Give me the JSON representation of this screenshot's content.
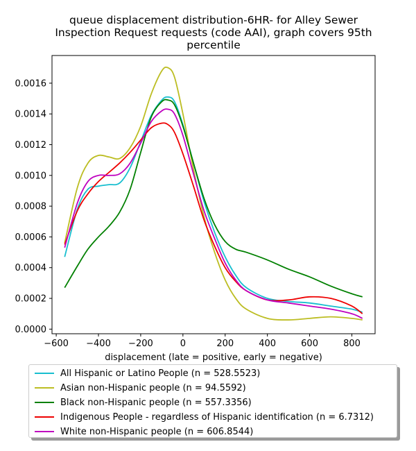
{
  "chart_data": {
    "type": "line",
    "title_lines": [
      "queue displacement distribution-6HR-  for Alley Sewer",
      "Inspection Request  requests (code AAI), graph covers 95th",
      "percentile"
    ],
    "xlabel": "displacement (late = positive, early = negative)",
    "ylabel": "",
    "xlim": [
      -620,
      910
    ],
    "ylim": [
      -3e-05,
      0.00178
    ],
    "x_ticks": [
      -600,
      -400,
      -200,
      0,
      200,
      400,
      600,
      800
    ],
    "x_tick_labels": [
      "−600",
      "−400",
      "−200",
      "0",
      "200",
      "400",
      "600",
      "800"
    ],
    "y_ticks": [
      0,
      0.0002,
      0.0004,
      0.0006,
      0.0008,
      0.001,
      0.0012,
      0.0014,
      0.0016
    ],
    "y_tick_labels": [
      "0.0000",
      "0.0002",
      "0.0004",
      "0.0006",
      "0.0008",
      "0.0010",
      "0.0012",
      "0.0014",
      "0.0016"
    ],
    "grid": false,
    "legend_position": "below",
    "series": [
      {
        "name": "All Hispanic or Latino People (n = 528.5523)",
        "color": "#17becf",
        "x": [
          -560,
          -500,
          -450,
          -400,
          -350,
          -300,
          -250,
          -200,
          -150,
          -100,
          -70,
          -40,
          0,
          50,
          100,
          150,
          200,
          250,
          300,
          400,
          500,
          600,
          700,
          800,
          850
        ],
        "y": [
          0.00047,
          0.00078,
          0.00091,
          0.00093,
          0.00094,
          0.00095,
          0.00105,
          0.00122,
          0.00139,
          0.00149,
          0.00151,
          0.00148,
          0.00133,
          0.00108,
          0.00083,
          0.00063,
          0.00047,
          0.00035,
          0.00027,
          0.0002,
          0.00018,
          0.00017,
          0.00015,
          0.00013,
          0.00011
        ]
      },
      {
        "name": "Asian non-Hispanic people (n = 94.5592)",
        "color": "#bcbd22",
        "x": [
          -560,
          -500,
          -450,
          -400,
          -350,
          -300,
          -250,
          -200,
          -150,
          -100,
          -70,
          -40,
          0,
          50,
          100,
          150,
          200,
          250,
          300,
          400,
          500,
          600,
          700,
          800,
          850
        ],
        "y": [
          0.00056,
          0.00092,
          0.00108,
          0.00113,
          0.00112,
          0.00111,
          0.00118,
          0.00132,
          0.00153,
          0.00168,
          0.0017,
          0.00164,
          0.0014,
          0.00104,
          0.00073,
          0.0005,
          0.00032,
          0.0002,
          0.00013,
          7e-05,
          6e-05,
          7e-05,
          8e-05,
          7e-05,
          6e-05
        ]
      },
      {
        "name": "Black non-Hispanic people (n = 557.3356)",
        "color": "#008000",
        "x": [
          -560,
          -500,
          -450,
          -400,
          -350,
          -300,
          -250,
          -200,
          -150,
          -100,
          -70,
          -40,
          0,
          50,
          100,
          150,
          200,
          250,
          300,
          400,
          500,
          600,
          700,
          800,
          850
        ],
        "y": [
          0.00027,
          0.00041,
          0.00052,
          0.0006,
          0.00067,
          0.00076,
          0.00091,
          0.00115,
          0.00138,
          0.00148,
          0.00149,
          0.00146,
          0.00132,
          0.00108,
          0.00085,
          0.00068,
          0.00057,
          0.00052,
          0.0005,
          0.00045,
          0.00039,
          0.00034,
          0.00028,
          0.00023,
          0.00021
        ]
      },
      {
        "name": "Indigenous People - regardless of Hispanic identification (n = 6.7312)",
        "color": "#ee0000",
        "x": [
          -560,
          -500,
          -450,
          -400,
          -350,
          -300,
          -250,
          -200,
          -150,
          -100,
          -70,
          -40,
          0,
          50,
          100,
          150,
          200,
          250,
          300,
          400,
          500,
          600,
          700,
          800,
          850
        ],
        "y": [
          0.00055,
          0.00077,
          0.00088,
          0.00096,
          0.00102,
          0.00108,
          0.00115,
          0.00123,
          0.00131,
          0.00134,
          0.00133,
          0.00128,
          0.00114,
          0.00093,
          0.00071,
          0.00054,
          0.0004,
          0.00031,
          0.00025,
          0.00019,
          0.00019,
          0.00021,
          0.0002,
          0.00015,
          0.0001
        ]
      },
      {
        "name": "White non-Hispanic people (n = 606.8544)",
        "color": "#bf00bf",
        "x": [
          -560,
          -500,
          -450,
          -400,
          -350,
          -300,
          -250,
          -200,
          -150,
          -100,
          -70,
          -40,
          0,
          50,
          100,
          150,
          200,
          250,
          300,
          400,
          500,
          600,
          700,
          800,
          850
        ],
        "y": [
          0.00053,
          0.00082,
          0.00096,
          0.001,
          0.001,
          0.00101,
          0.00108,
          0.00121,
          0.00135,
          0.00142,
          0.00143,
          0.0014,
          0.00126,
          0.00101,
          0.00077,
          0.00059,
          0.00043,
          0.00032,
          0.00025,
          0.00019,
          0.00017,
          0.00015,
          0.00013,
          0.0001,
          7e-05
        ]
      }
    ]
  }
}
